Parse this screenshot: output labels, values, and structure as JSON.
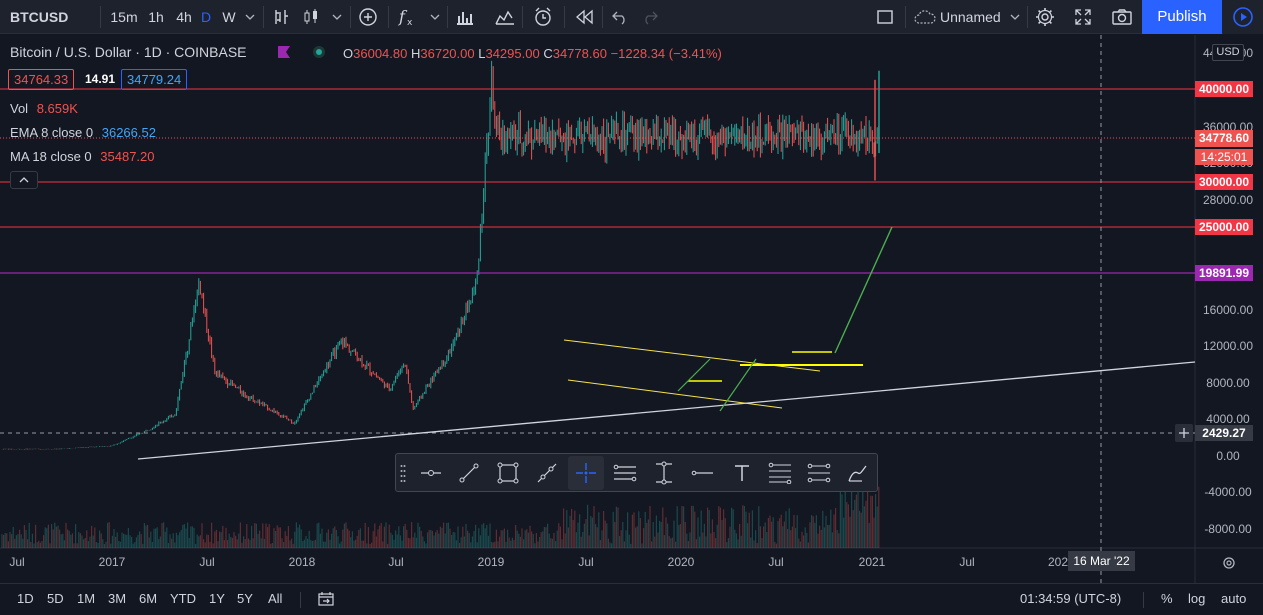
{
  "symbol": "BTCUSD",
  "intervals": [
    "15m",
    "1h",
    "4h",
    "D",
    "W"
  ],
  "selected_interval": "D",
  "layout_name": "Unnamed",
  "publish_label": "Publish",
  "legend": {
    "title": "Bitcoin / U.S. Dollar · 1D · COINBASE",
    "open_label": "O",
    "open": "36004.80",
    "high_label": "H",
    "high": "36720.00",
    "low_label": "L",
    "low": "34295.00",
    "close_label": "C",
    "close": "34778.60",
    "change": "−1228.34 (−3.41%)",
    "bid": "34764.33",
    "spread": "14.91",
    "ask": "34779.24",
    "vol_label": "Vol",
    "vol_value": "8.659K",
    "ema_label": "EMA 8 close 0",
    "ema_value": "36266.52",
    "ma_label": "MA 18 close 0",
    "ma_value": "35487.20"
  },
  "price_axis": {
    "currency": "USD",
    "ticks": [
      "44000.00",
      "36000.00",
      "32000.00",
      "28000.00",
      "16000.00",
      "12000.00",
      "8000.00",
      "4000.00",
      "0.00",
      "-4000.00",
      "-8000.00"
    ],
    "labels": {
      "l40000": "40000.00",
      "current": "34778.60",
      "countdown": "14:25:01",
      "l30000": "30000.00",
      "l25000": "25000.00",
      "l19891": "19891.99",
      "crosshair": "2429.27"
    }
  },
  "time_axis": {
    "ticks": [
      "Jul",
      "2017",
      "Jul",
      "2018",
      "Jul",
      "2019",
      "Jul",
      "2020",
      "Jul",
      "2021",
      "Jul",
      "202"
    ],
    "crosshair_date": "16 Mar '22"
  },
  "bottom_bar": {
    "ranges": [
      "1D",
      "5D",
      "1M",
      "3M",
      "6M",
      "YTD",
      "1Y",
      "5Y",
      "All"
    ],
    "time": "01:34:59 (UTC-8)",
    "percent": "%",
    "log": "log",
    "auto": "auto"
  },
  "chart_data": {
    "type": "candlestick",
    "x_range": [
      "2016-06",
      "2022-03"
    ],
    "y_range": [
      -10000,
      45000
    ],
    "price_path": [
      {
        "x": "2016-06",
        "y": 650
      },
      {
        "x": "2017-01",
        "y": 1000
      },
      {
        "x": "2017-05",
        "y": 2500
      },
      {
        "x": "2017-09",
        "y": 4500
      },
      {
        "x": "2017-12",
        "y": 19000
      },
      {
        "x": "2018-02",
        "y": 9000
      },
      {
        "x": "2018-06",
        "y": 6500
      },
      {
        "x": "2018-12",
        "y": 3500
      },
      {
        "x": "2019-06",
        "y": 12500
      },
      {
        "x": "2019-12",
        "y": 7200
      },
      {
        "x": "2020-02",
        "y": 10200
      },
      {
        "x": "2020-03",
        "y": 5000
      },
      {
        "x": "2020-08",
        "y": 11800
      },
      {
        "x": "2020-11",
        "y": 18500
      },
      {
        "x": "2021-01",
        "y": 41000
      },
      {
        "x": "2021-01",
        "y": 34778
      }
    ],
    "horizontal_lines": [
      40000,
      30000,
      25000,
      19891.99
    ]
  },
  "colors": {
    "up": "#26a69a",
    "down": "#ef5350",
    "red_level": "#f23645",
    "purple_level": "#9c27b0",
    "accent": "#2962ff",
    "trend_yellow": "#f7e34c",
    "trend_green": "#4caf50",
    "trend_white": "#d1d4dc"
  }
}
